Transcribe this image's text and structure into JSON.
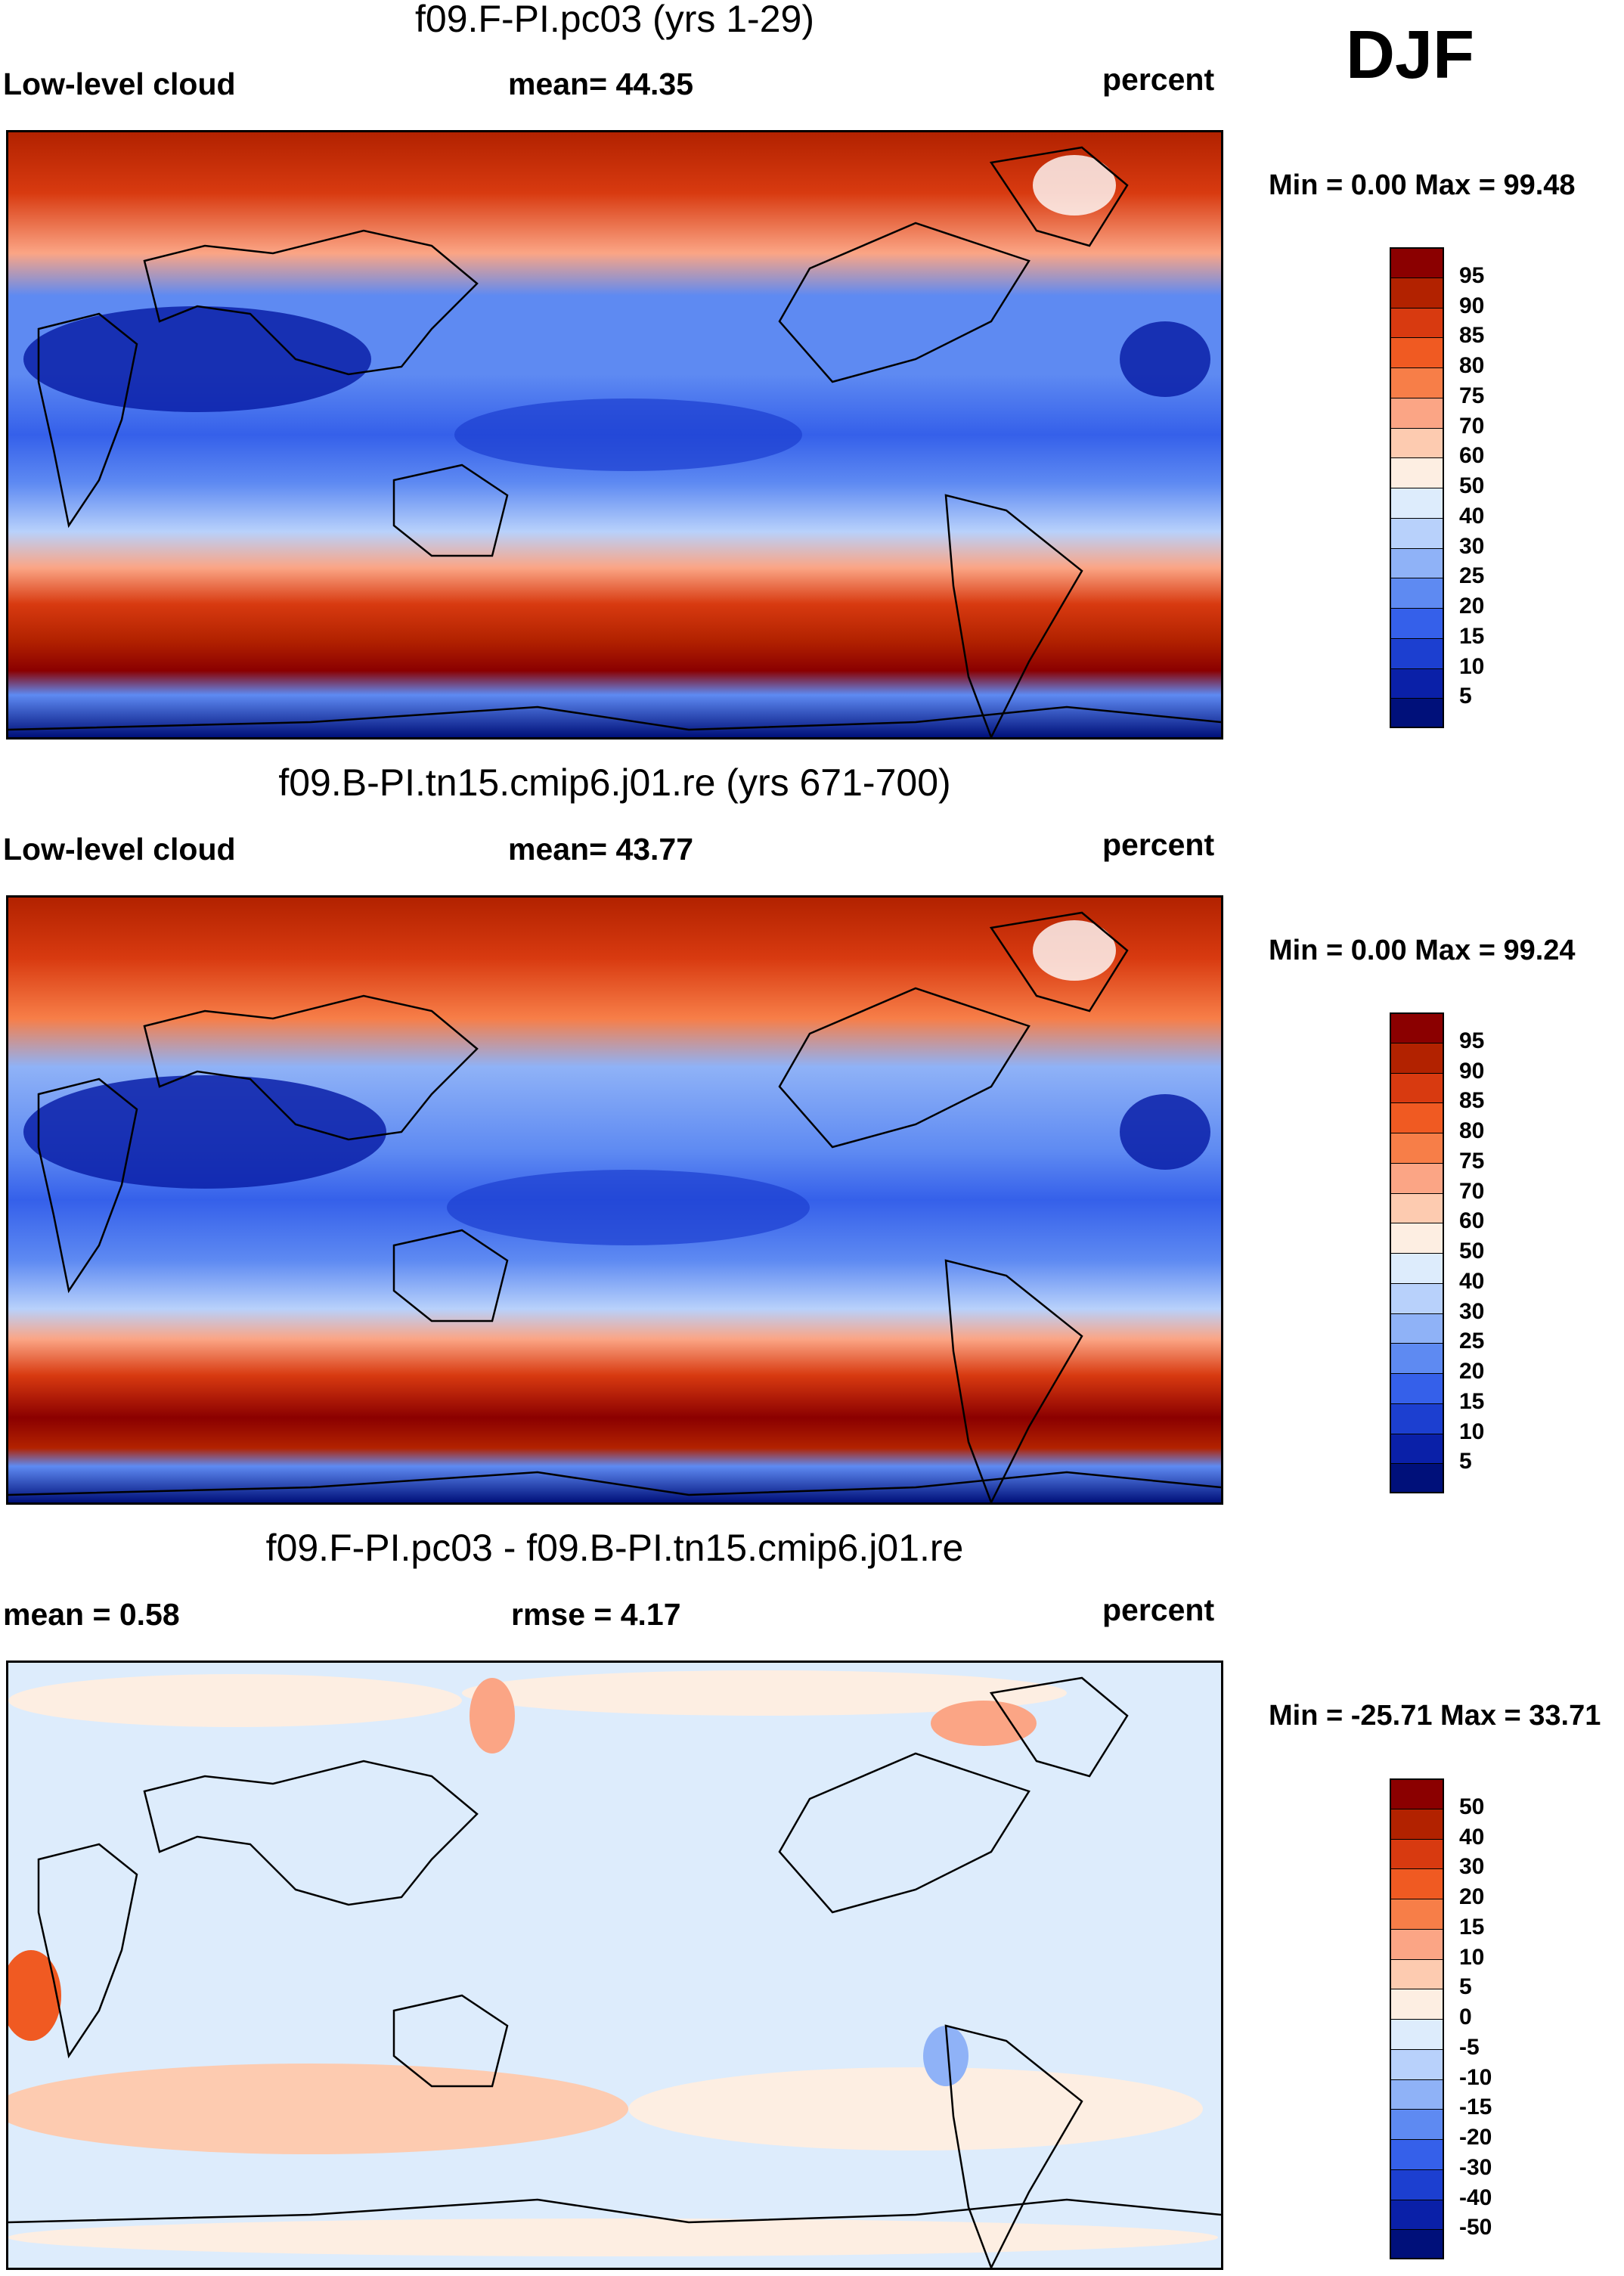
{
  "season": "DJF",
  "panels": [
    {
      "title": "f09.F-PI.pc03 (yrs 1-29)",
      "left_label": "Low-level cloud",
      "center_label": "mean=  44.35",
      "right_label": "percent",
      "minmax": "Min =    0.00 Max =  99.48",
      "colorbar_labels": [
        "95",
        "90",
        "85",
        "80",
        "75",
        "70",
        "60",
        "50",
        "40",
        "30",
        "25",
        "20",
        "15",
        "10",
        "5"
      ]
    },
    {
      "title": "f09.B-PI.tn15.cmip6.j01.re (yrs 671-700)",
      "left_label": "Low-level cloud",
      "center_label": "mean=  43.77",
      "right_label": "percent",
      "minmax": "Min =    0.00 Max =  99.24",
      "colorbar_labels": [
        "95",
        "90",
        "85",
        "80",
        "75",
        "70",
        "60",
        "50",
        "40",
        "30",
        "25",
        "20",
        "15",
        "10",
        "5"
      ]
    },
    {
      "title": "f09.F-PI.pc03 - f09.B-PI.tn15.cmip6.j01.re",
      "left_label": "mean =    0.58",
      "center_label": "rmse =    4.17",
      "right_label": "percent",
      "minmax": "Min = -25.71 Max =  33.71",
      "colorbar_labels": [
        "50",
        "40",
        "30",
        "20",
        "15",
        "10",
        "5",
        "0",
        "-5",
        "-10",
        "-15",
        "-20",
        "-30",
        "-40",
        "-50"
      ]
    }
  ],
  "colors": {
    "abs_scale": [
      "#8b0000",
      "#b22200",
      "#d83a10",
      "#f05a22",
      "#f77e48",
      "#fba585",
      "#fdcbb0",
      "#fdeee2",
      "#ddecfc",
      "#b8d1fb",
      "#8fb2f7",
      "#5e8af2",
      "#3560ea",
      "#1c3fd0",
      "#0a20a8",
      "#00107a"
    ],
    "diff_scale": [
      "#8b0000",
      "#b22200",
      "#d83a10",
      "#f05a22",
      "#f77e48",
      "#fba585",
      "#fdcbb0",
      "#fdeee2",
      "#ddecfc",
      "#b8d1fb",
      "#8fb2f7",
      "#5e8af2",
      "#3560ea",
      "#1c3fd0",
      "#0a20a8",
      "#00107a"
    ]
  }
}
